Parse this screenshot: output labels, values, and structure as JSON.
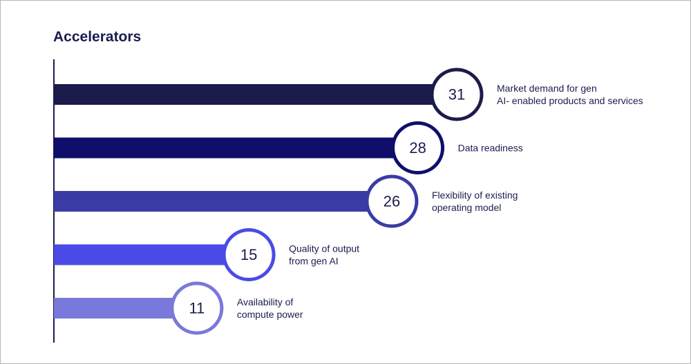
{
  "chart_data": {
    "type": "bar",
    "orientation": "horizontal",
    "title": "Accelerators",
    "xlabel": "",
    "ylabel": "",
    "grid": false,
    "legend": "none",
    "categories": [
      [
        "Market demand for gen",
        "AI- enabled products and services"
      ],
      [
        "Data readiness"
      ],
      [
        "Flexibility of existing",
        "operating model"
      ],
      [
        "Quality of output",
        "from gen AI"
      ],
      [
        "Availability of",
        "compute power"
      ]
    ],
    "values": [
      31,
      28,
      26,
      15,
      11
    ],
    "colors": [
      "#1b1c4b",
      "#0f0f6b",
      "#3b3ba6",
      "#4a4be6",
      "#7979dc"
    ],
    "value_label_color": "#1a1d4e"
  }
}
